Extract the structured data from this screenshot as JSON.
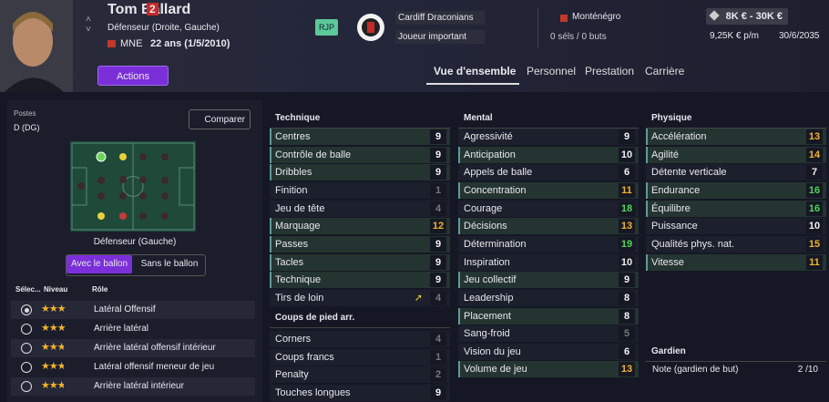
{
  "player": {
    "name": "Tom Ballard",
    "number": "2",
    "position": "Défenseur (Droite, Gauche)",
    "nation": "MNE",
    "age": "22 ans (1/5/2010)",
    "badge": "RJP",
    "actions": "Actions"
  },
  "club": {
    "name": "Cardiff Draconians",
    "status": "Joueur important"
  },
  "international": {
    "country": "Monténégro",
    "caps": "0 séls / 0 buts"
  },
  "contract": {
    "value": "8K € - 30K €",
    "wage": "9,25K € p/m",
    "expires": "30/6/2035"
  },
  "tabs": [
    "Vue d'ensemble",
    "Personnel",
    "Prestation",
    "Carrière"
  ],
  "positions": {
    "label": "Postes",
    "value": "D (DG)",
    "compare": "Comparer",
    "selected": "Défenseur (Gauche)",
    "toggle": [
      "Avec le ballon",
      "Sans le ballon"
    ],
    "headers": [
      "Sélec...",
      "Niveau",
      "Rôle"
    ],
    "roles": [
      {
        "name": "Latéral Offensif",
        "stars": 3,
        "selected": true
      },
      {
        "name": "Arrière latéral",
        "stars": 3,
        "selected": false
      },
      {
        "name": "Arrière latéral offensif intérieur",
        "stars": 2.5,
        "selected": false
      },
      {
        "name": "Latéral offensif meneur de jeu",
        "stars": 2.5,
        "selected": false
      },
      {
        "name": "Arrière latéral intérieur",
        "stars": 2.5,
        "selected": false
      }
    ]
  },
  "attributes": [
    {
      "title": "Technique",
      "rows": [
        {
          "name": "Centres",
          "value": 9,
          "highlight": true
        },
        {
          "name": "Contrôle de balle",
          "value": 9,
          "highlight": true
        },
        {
          "name": "Dribbles",
          "value": 9,
          "highlight": true
        },
        {
          "name": "Finition",
          "value": 1,
          "highlight": false
        },
        {
          "name": "Jeu de tête",
          "value": 4,
          "highlight": false
        },
        {
          "name": "Marquage",
          "value": 12,
          "highlight": true
        },
        {
          "name": "Passes",
          "value": 9,
          "highlight": true
        },
        {
          "name": "Tacles",
          "value": 9,
          "highlight": true
        },
        {
          "name": "Technique",
          "value": 9,
          "highlight": true
        },
        {
          "name": "Tirs de loin",
          "value": 4,
          "highlight": false,
          "arrow": true
        }
      ]
    },
    {
      "title": "Coups de pied arr.",
      "rows": [
        {
          "name": "Corners",
          "value": 4,
          "highlight": false
        },
        {
          "name": "Coups francs",
          "value": 1,
          "highlight": false
        },
        {
          "name": "Penalty",
          "value": 2,
          "highlight": false
        },
        {
          "name": "Touches longues",
          "value": 9,
          "highlight": false
        }
      ]
    },
    {
      "title": "Mental",
      "rows": [
        {
          "name": "Agressivité",
          "value": 9,
          "highlight": false
        },
        {
          "name": "Anticipation",
          "value": 10,
          "highlight": true
        },
        {
          "name": "Appels de balle",
          "value": 6,
          "highlight": false
        },
        {
          "name": "Concentration",
          "value": 11,
          "highlight": true
        },
        {
          "name": "Courage",
          "value": 18,
          "highlight": false
        },
        {
          "name": "Décisions",
          "value": 13,
          "highlight": true
        },
        {
          "name": "Détermination",
          "value": 19,
          "highlight": false
        },
        {
          "name": "Inspiration",
          "value": 10,
          "highlight": false
        },
        {
          "name": "Jeu collectif",
          "value": 9,
          "highlight": true
        },
        {
          "name": "Leadership",
          "value": 8,
          "highlight": false
        },
        {
          "name": "Placement",
          "value": 8,
          "highlight": true
        },
        {
          "name": "Sang-froid",
          "value": 5,
          "highlight": false
        },
        {
          "name": "Vision du jeu",
          "value": 6,
          "highlight": false
        },
        {
          "name": "Volume de jeu",
          "value": 13,
          "highlight": true
        }
      ]
    },
    {
      "title": "Physique",
      "rows": [
        {
          "name": "Accélération",
          "value": 13,
          "highlight": true
        },
        {
          "name": "Agilité",
          "value": 14,
          "highlight": true
        },
        {
          "name": "Détente verticale",
          "value": 7,
          "highlight": false
        },
        {
          "name": "Endurance",
          "value": 16,
          "highlight": true
        },
        {
          "name": "Équilibre",
          "value": 16,
          "highlight": true
        },
        {
          "name": "Puissance",
          "value": 10,
          "highlight": false
        },
        {
          "name": "Qualités phys. nat.",
          "value": 15,
          "highlight": false
        },
        {
          "name": "Vitesse",
          "value": 11,
          "highlight": true
        }
      ]
    }
  ],
  "goalkeeper": {
    "title": "Gardien",
    "label": "Note (gardien de but)",
    "value": "2 /10"
  }
}
